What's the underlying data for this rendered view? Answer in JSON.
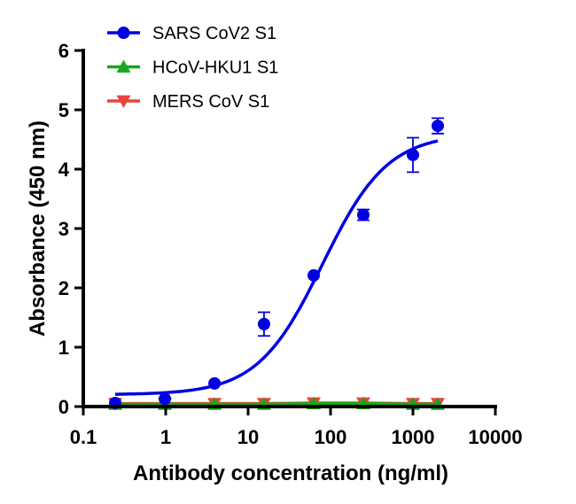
{
  "chart_data": {
    "type": "scatter",
    "title": "",
    "xlabel": "Antibody concentration (ng/ml)",
    "ylabel": "Absorbance (450 nm)",
    "xscale": "log",
    "xlim": [
      0.1,
      10000
    ],
    "ylim": [
      0,
      6
    ],
    "xticks": [
      "0.1",
      "1",
      "10",
      "100",
      "1000",
      "10000"
    ],
    "xtick_values": [
      0.1,
      1,
      10,
      100,
      1000,
      10000
    ],
    "yticks": [
      "0",
      "1",
      "2",
      "3",
      "4",
      "5",
      "6"
    ],
    "legend_position": "top-left",
    "x": [
      0.244,
      0.977,
      3.91,
      15.6,
      62.5,
      250,
      1000,
      2000
    ],
    "series": [
      {
        "name": "SARS CoV2 S1",
        "color": "#0000e0",
        "marker": "circle",
        "values": [
          0.06,
          0.13,
          0.39,
          1.39,
          2.21,
          3.23,
          4.24,
          4.73
        ],
        "errors": [
          0.02,
          0.03,
          0.03,
          0.2,
          0.05,
          0.09,
          0.29,
          0.13
        ],
        "fit": {
          "model": "4PL",
          "bottom": 0.2,
          "top": 4.6,
          "ec50": 80,
          "hill": 1.1
        }
      },
      {
        "name": "HCoV-HKU1 S1",
        "color": "#1aa61a",
        "marker": "triangle-up",
        "values": [
          0.04,
          0.04,
          0.04,
          0.04,
          0.05,
          0.05,
          0.04,
          0.04
        ]
      },
      {
        "name": "MERS CoV S1",
        "color": "#e8443a",
        "marker": "triangle-down",
        "values": [
          0.05,
          0.05,
          0.05,
          0.05,
          0.06,
          0.06,
          0.05,
          0.05
        ]
      }
    ]
  }
}
